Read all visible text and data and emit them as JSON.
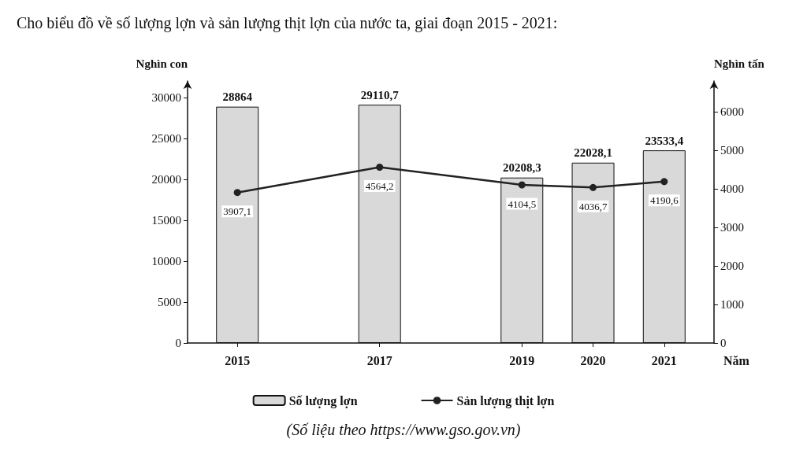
{
  "chart_data": {
    "type": "bar",
    "title": "Cho biểu đồ về số lượng lợn và sản lượng thịt lợn của nước ta, giai đoạn 2015 - 2021:",
    "xlabel": "Năm",
    "ylabel": "Nghìn con",
    "y2label": "Nghìn tấn",
    "x": [
      2015,
      2017,
      2019,
      2020,
      2021
    ],
    "xlim": [
      2014.3,
      2021.7
    ],
    "xticks": [
      2015,
      2017,
      2019,
      2020,
      2021
    ],
    "ylim": [
      0,
      32000
    ],
    "yticks": [
      0,
      5000,
      10000,
      15000,
      20000,
      25000,
      30000
    ],
    "y2lim": [
      0,
      6800
    ],
    "y2ticks": [
      0,
      1000,
      2000,
      3000,
      4000,
      5000,
      6000
    ],
    "series": [
      {
        "name": "Số lượng lợn",
        "color": "#d9d9d9",
        "values": [
          28864,
          29110.7,
          20208.3,
          22028.1,
          23533.4
        ],
        "value_labels": [
          "28864",
          "29110,7",
          "20208,3",
          "22028,1",
          "23533,4"
        ]
      },
      {
        "name": "Sản lượng thịt lợn",
        "type": "line",
        "axis": "y2",
        "color": "#222222",
        "values": [
          3907.1,
          4564.2,
          4104.5,
          4036.7,
          4190.6
        ],
        "value_labels": [
          "3907,1",
          "4564,2",
          "4104,5",
          "4036,7",
          "4190,6"
        ]
      }
    ],
    "marker": "circle",
    "line_style": "solid",
    "grid": false,
    "legend": "bottom",
    "annotations": [
      "(Số liệu theo https://www.gso.gov.vn)"
    ]
  }
}
